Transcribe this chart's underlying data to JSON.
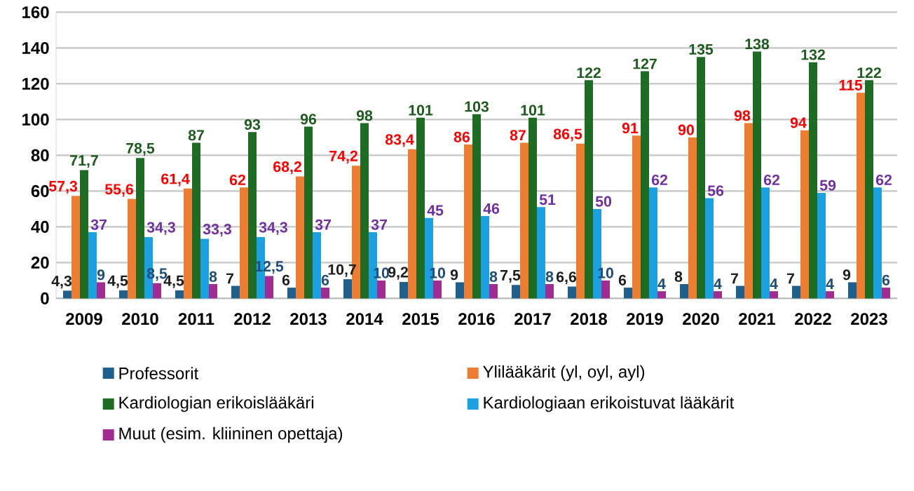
{
  "chart_data": {
    "type": "bar",
    "categories": [
      "2009",
      "2010",
      "2011",
      "2012",
      "2013",
      "2014",
      "2015",
      "2016",
      "2017",
      "2018",
      "2019",
      "2020",
      "2021",
      "2022",
      "2023"
    ],
    "series": [
      {
        "name": "Professorit",
        "color": "#1f5f8b",
        "values": [
          4.3,
          4.5,
          4.5,
          7,
          6,
          10.7,
          9.2,
          9,
          7.5,
          6.6,
          6,
          8,
          7,
          7,
          9
        ],
        "value_labels": [
          "4,3",
          "4,5",
          "4,5",
          "7",
          "6",
          "10,7",
          "9,2",
          "9",
          "7,5",
          "6,6",
          "6",
          "8",
          "7",
          "7",
          "9"
        ]
      },
      {
        "name": "Ylilääkärit (yl, oyl, ayl)",
        "color": "#ed7d31",
        "values": [
          57.3,
          55.6,
          61.4,
          62,
          68.2,
          74.2,
          83.4,
          86,
          87,
          86.5,
          91,
          90,
          98,
          94,
          115
        ],
        "value_labels": [
          "57,3",
          "55,6",
          "61,4",
          "62",
          "68,2",
          "74,2",
          "83,4",
          "86",
          "87",
          "86,5",
          "91",
          "90",
          "98",
          "94",
          "115"
        ]
      },
      {
        "name": "Kardiologian erikoislääkäri",
        "color": "#1e6b24",
        "values": [
          71.7,
          78.5,
          87,
          93,
          96,
          98,
          101,
          103,
          101,
          122,
          127,
          135,
          138,
          132,
          122
        ],
        "value_labels": [
          "71,7",
          "78,5",
          "87",
          "93",
          "96",
          "98",
          "101",
          "103",
          "101",
          "122",
          "127",
          "135",
          "138",
          "132",
          "122"
        ]
      },
      {
        "name": "Kardiologiaan erikoistuvat lääkärit",
        "color": "#1ba1e2",
        "values": [
          37,
          34.3,
          33.3,
          34.3,
          37,
          37,
          45,
          46,
          51,
          50,
          62,
          56,
          62,
          59,
          62
        ],
        "value_labels": [
          "37",
          "34,3",
          "33,3",
          "34,3",
          "37",
          "37",
          "45",
          "46",
          "51",
          "50",
          "62",
          "56",
          "62",
          "59",
          "62"
        ]
      },
      {
        "name": "Muut (esim. kliininen opettaja)",
        "color": "#a02b93",
        "values": [
          9,
          8.5,
          8,
          12.5,
          6,
          10,
          10,
          8,
          8,
          10,
          4,
          4,
          4,
          4,
          6
        ],
        "value_labels": [
          "9",
          "8,5",
          "8",
          "12,5",
          "6",
          "10",
          "10",
          "8",
          "8",
          "10",
          "4",
          "4",
          "4",
          "4",
          "6"
        ]
      }
    ],
    "ylim": [
      0,
      160
    ],
    "yticks": [
      0,
      20,
      40,
      60,
      80,
      100,
      120,
      140,
      160
    ],
    "grid": "y",
    "legend": "bottom"
  }
}
